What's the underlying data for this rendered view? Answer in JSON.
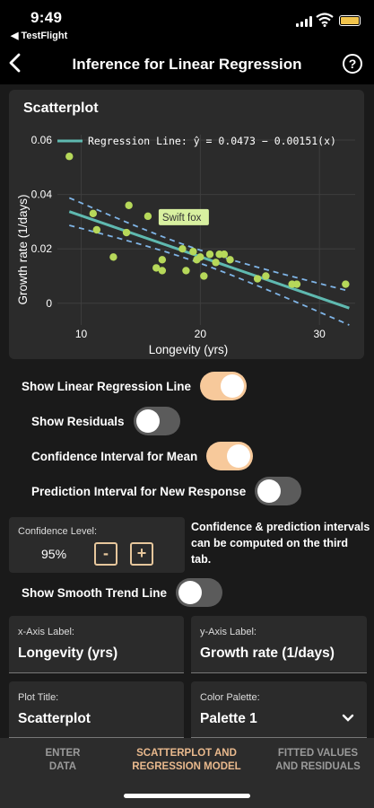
{
  "status": {
    "time": "9:49",
    "back_app": "◀ TestFlight",
    "battery_color": "#f2c44c"
  },
  "header": {
    "title": "Inference for Linear Regression",
    "help": "?",
    "back_icon": "chevron-left-icon",
    "help_icon": "question-circle-icon"
  },
  "card": {
    "title": "Scatterplot"
  },
  "chart_data": {
    "type": "scatter",
    "legend": "Regression Line: ŷ = 0.0473 − 0.00151(x)",
    "legend_placement": "top-left",
    "xlabel": "Longevity (yrs)",
    "ylabel": "Growth rate (1/days)",
    "xlim": [
      8,
      33
    ],
    "ylim": [
      -0.008,
      0.062
    ],
    "x_ticks": [
      10,
      20,
      30
    ],
    "y_ticks": [
      0,
      0.02,
      0.04,
      0.06
    ],
    "y_tick_labels": [
      "0",
      "0.02",
      "0.04",
      "0.06"
    ],
    "grid": true,
    "point_color": "#b6d85a",
    "line_color": "#5fb9b0",
    "band_color": "#7fb4e6",
    "annotation": {
      "text": "Swift fox",
      "x": 16.2,
      "y": 0.031
    },
    "regression": {
      "intercept": 0.0473,
      "slope": -0.00151
    },
    "points": [
      {
        "x": 9,
        "y": 0.054
      },
      {
        "x": 11,
        "y": 0.033
      },
      {
        "x": 11.3,
        "y": 0.027
      },
      {
        "x": 12.7,
        "y": 0.017
      },
      {
        "x": 13.8,
        "y": 0.026
      },
      {
        "x": 14,
        "y": 0.036
      },
      {
        "x": 15.6,
        "y": 0.032
      },
      {
        "x": 16.3,
        "y": 0.013
      },
      {
        "x": 16.8,
        "y": 0.016
      },
      {
        "x": 16.8,
        "y": 0.012
      },
      {
        "x": 18.5,
        "y": 0.02
      },
      {
        "x": 18.8,
        "y": 0.012
      },
      {
        "x": 19.4,
        "y": 0.019
      },
      {
        "x": 19.7,
        "y": 0.016
      },
      {
        "x": 20,
        "y": 0.017
      },
      {
        "x": 20.3,
        "y": 0.01
      },
      {
        "x": 20.8,
        "y": 0.018
      },
      {
        "x": 21.3,
        "y": 0.015
      },
      {
        "x": 21.6,
        "y": 0.018
      },
      {
        "x": 22,
        "y": 0.018
      },
      {
        "x": 22.5,
        "y": 0.016
      },
      {
        "x": 24.8,
        "y": 0.009
      },
      {
        "x": 25.5,
        "y": 0.01
      },
      {
        "x": 27.7,
        "y": 0.007
      },
      {
        "x": 28.1,
        "y": 0.007
      },
      {
        "x": 32.2,
        "y": 0.007
      }
    ]
  },
  "toggles": [
    {
      "label": "Show Linear Regression Line",
      "on": true
    },
    {
      "label": "Show Residuals",
      "on": false
    },
    {
      "label": "Confidence Interval for Mean",
      "on": true
    },
    {
      "label": "Prediction Interval for New Response",
      "on": false
    },
    {
      "label": "Show Smooth Trend Line",
      "on": false
    }
  ],
  "confidence": {
    "label": "Confidence Level:",
    "value": "95%",
    "minus": "-",
    "plus": "+"
  },
  "note": "Confidence & prediction intervals can be computed on the third tab.",
  "fields": {
    "x_axis": {
      "label": "x-Axis Label:",
      "value": "Longevity (yrs)"
    },
    "y_axis": {
      "label": "y-Axis Label:",
      "value": "Growth rate (1/days)"
    },
    "plot_title": {
      "label": "Plot Title:",
      "value": "Scatterplot"
    },
    "palette": {
      "label": "Color Palette:",
      "value": "Palette 1"
    }
  },
  "tabs": [
    {
      "label": "ENTER DATA",
      "line1": "ENTER",
      "line2": "DATA",
      "active": false
    },
    {
      "label": "SCATTERPLOT AND REGRESSION MODEL",
      "line1": "SCATTERPLOT AND",
      "line2": "REGRESSION MODEL",
      "active": true
    },
    {
      "label": "FITTED VALUES AND RESIDUALS",
      "line1": "FITTED VALUES",
      "line2": "AND RESIDUALS",
      "active": false
    }
  ],
  "colors": {
    "accent": "#f7c99b",
    "active_tab": "#e9b98d"
  }
}
